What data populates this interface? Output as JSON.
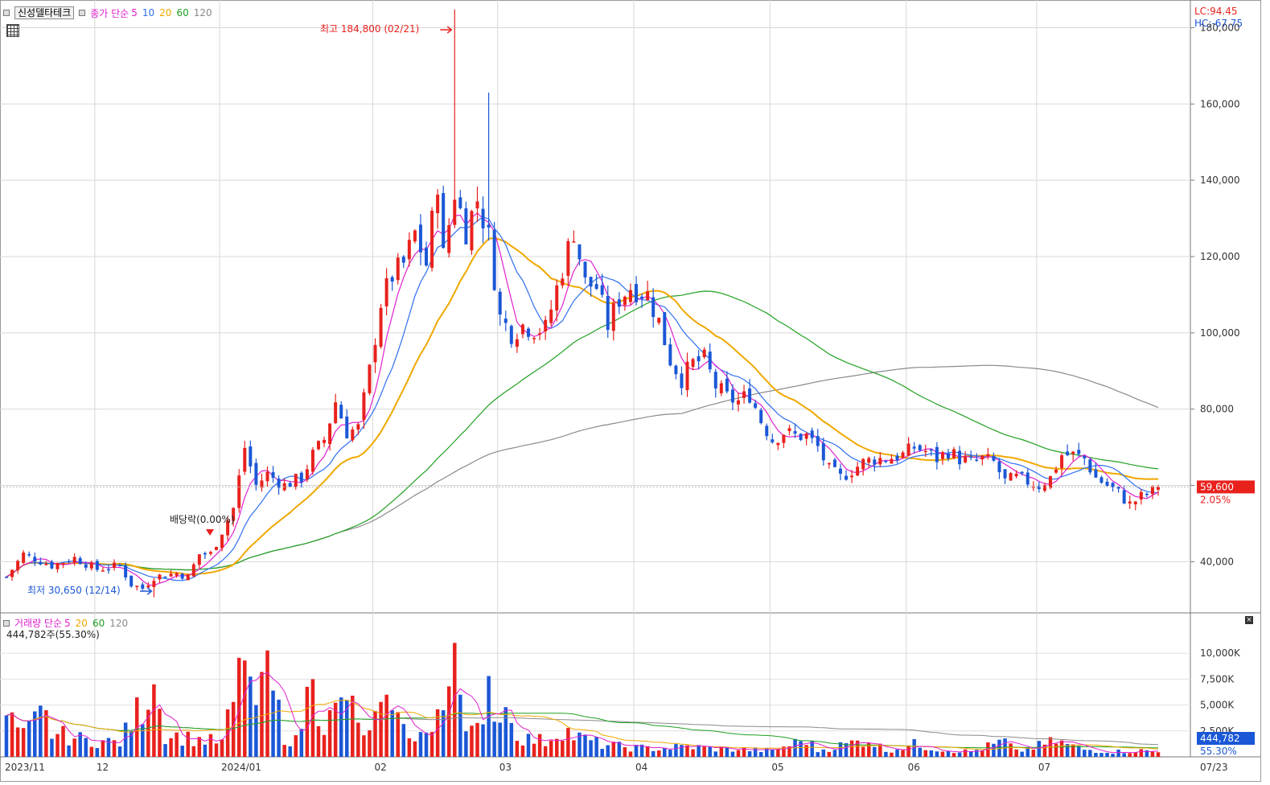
{
  "header": {
    "stock_name": "신성델타테크",
    "price_label": "종가 단순",
    "ma5": "5",
    "ma10": "10",
    "ma20": "20",
    "ma60": "60",
    "ma120": "120",
    "lc": "LC:94.45",
    "hc": "HC:-67.75"
  },
  "volume_header": {
    "label": "거래량 단순",
    "ma5": "5",
    "ma20": "20",
    "ma60": "60",
    "ma120": "120",
    "current": "444,782주(55.30%)"
  },
  "annotations": {
    "high": "최고 184,800 (02/21)",
    "low": "최저 30,650 (12/14)",
    "dividend": "배당락(0.00%)"
  },
  "current_price": {
    "value": "59,600",
    "change": "2.05%"
  },
  "current_volume": {
    "value": "444,782",
    "ratio": "55.30%"
  },
  "colors": {
    "up": "#e8211d",
    "down": "#1b57d6",
    "ma5": "#e020d0",
    "ma10": "#2f6ff0",
    "ma20": "#f0a800",
    "ma60": "#20a020",
    "ma120": "#8a8a8a"
  },
  "chart_data": [
    {
      "type": "candlestick",
      "title": "",
      "ylim": [
        27000,
        186000
      ],
      "y_ticks": [
        "40,000",
        "60,000",
        "80,000",
        "100,000",
        "120,000",
        "140,000",
        "160,000",
        "180,000"
      ],
      "x_ticks": [
        "2023/11",
        "12",
        "2024/01",
        "02",
        "03",
        "04",
        "05",
        "06",
        "07",
        "07/23"
      ],
      "close_anchors": [
        [
          0,
          36000
        ],
        [
          3,
          42000
        ],
        [
          8,
          39000
        ],
        [
          12,
          41000
        ],
        [
          16,
          38000
        ],
        [
          20,
          39000
        ],
        [
          22,
          34000
        ],
        [
          24,
          33000
        ],
        [
          26,
          36000
        ],
        [
          30,
          37000
        ],
        [
          32,
          36000
        ],
        [
          34,
          42000
        ],
        [
          36,
          42000
        ],
        [
          40,
          54000
        ],
        [
          42,
          70000
        ],
        [
          44,
          60000
        ],
        [
          46,
          63000
        ],
        [
          49,
          60000
        ],
        [
          52,
          62000
        ],
        [
          54,
          68000
        ],
        [
          56,
          72000
        ],
        [
          58,
          82000
        ],
        [
          60,
          74000
        ],
        [
          62,
          75000
        ],
        [
          64,
          90000
        ],
        [
          66,
          108000
        ],
        [
          68,
          115000
        ],
        [
          70,
          118000
        ],
        [
          72,
          126000
        ],
        [
          74,
          118000
        ],
        [
          76,
          140000
        ],
        [
          77,
          120000
        ],
        [
          79,
          137000
        ],
        [
          81,
          127000
        ],
        [
          83,
          135000
        ],
        [
          85,
          125000
        ],
        [
          87,
          104000
        ],
        [
          89,
          100000
        ],
        [
          91,
          102000
        ],
        [
          93,
          101000
        ],
        [
          95,
          101000
        ],
        [
          98,
          117000
        ],
        [
          100,
          127000
        ],
        [
          102,
          113000
        ],
        [
          104,
          112000
        ],
        [
          106,
          102000
        ],
        [
          108,
          109000
        ],
        [
          110,
          112000
        ],
        [
          113,
          110000
        ],
        [
          115,
          103000
        ],
        [
          117,
          93000
        ],
        [
          119,
          88000
        ],
        [
          121,
          92000
        ],
        [
          123,
          93000
        ],
        [
          125,
          86000
        ],
        [
          127,
          83000
        ],
        [
          129,
          82000
        ],
        [
          131,
          84000
        ],
        [
          133,
          77000
        ],
        [
          135,
          72000
        ],
        [
          137,
          74000
        ],
        [
          139,
          73000
        ],
        [
          141,
          73000
        ],
        [
          143,
          70000
        ],
        [
          145,
          64000
        ],
        [
          147,
          62000
        ],
        [
          149,
          64000
        ],
        [
          151,
          66000
        ],
        [
          153,
          67000
        ],
        [
          155,
          67000
        ],
        [
          158,
          68000
        ],
        [
          160,
          70000
        ],
        [
          162,
          69000
        ],
        [
          164,
          67000
        ],
        [
          166,
          69000
        ],
        [
          168,
          67000
        ],
        [
          170,
          66000
        ],
        [
          172,
          67000
        ],
        [
          174,
          66000
        ],
        [
          176,
          61000
        ],
        [
          178,
          62000
        ],
        [
          180,
          61000
        ],
        [
          182,
          60000
        ],
        [
          184,
          62000
        ],
        [
          186,
          68000
        ],
        [
          188,
          68000
        ],
        [
          190,
          67000
        ],
        [
          192,
          62000
        ],
        [
          194,
          60000
        ],
        [
          196,
          58000
        ],
        [
          198,
          55000
        ],
        [
          200,
          57000
        ],
        [
          202,
          58400
        ],
        [
          203,
          59600
        ]
      ],
      "special_candles": [
        {
          "index": 79,
          "high": 184800,
          "note": "최고"
        },
        {
          "index": 85,
          "high": 163000
        },
        {
          "index": 26,
          "low": 30650,
          "note": "최저"
        }
      ],
      "ma_periods": [
        5,
        10,
        20,
        60,
        120
      ],
      "months": [
        {
          "label": "2023/11",
          "index": 0
        },
        {
          "label": "12",
          "index": 16
        },
        {
          "label": "2024/01",
          "index": 38
        },
        {
          "label": "02",
          "index": 65
        },
        {
          "label": "03",
          "index": 87
        },
        {
          "label": "04",
          "index": 111
        },
        {
          "label": "05",
          "index": 135
        },
        {
          "label": "06",
          "index": 159
        },
        {
          "label": "07",
          "index": 182
        }
      ]
    },
    {
      "type": "bar",
      "title": "",
      "ylim": [
        0,
        12500000
      ],
      "y_ticks": [
        "2,500K",
        "5,000K",
        "7,500K",
        "10,000K"
      ],
      "volume_anchors": [
        [
          0,
          4000000
        ],
        [
          3,
          2000000
        ],
        [
          7,
          4500000
        ],
        [
          8,
          2300000
        ],
        [
          14,
          1600000
        ],
        [
          20,
          1400000
        ],
        [
          26,
          7000000
        ],
        [
          28,
          2200000
        ],
        [
          32,
          1800000
        ],
        [
          38,
          1400000
        ],
        [
          40,
          5300000
        ],
        [
          42,
          9300000
        ],
        [
          44,
          5000000
        ],
        [
          45,
          8200000
        ],
        [
          47,
          6400000
        ],
        [
          49,
          2000000
        ],
        [
          51,
          1500000
        ],
        [
          54,
          7500000
        ],
        [
          56,
          3000000
        ],
        [
          60,
          5500000
        ],
        [
          62,
          3300000
        ],
        [
          64,
          2000000
        ],
        [
          66,
          5300000
        ],
        [
          67,
          6000000
        ],
        [
          68,
          4500000
        ],
        [
          70,
          2600000
        ],
        [
          72,
          2200000
        ],
        [
          75,
          2300000
        ],
        [
          77,
          4500000
        ],
        [
          79,
          11000000
        ],
        [
          80,
          6000000
        ],
        [
          82,
          2800000
        ],
        [
          84,
          2300000
        ],
        [
          85,
          7800000
        ],
        [
          87,
          3300000
        ],
        [
          88,
          4800000
        ],
        [
          89,
          3000000
        ],
        [
          91,
          1800000
        ],
        [
          95,
          1500000
        ],
        [
          98,
          2800000
        ],
        [
          100,
          2000000
        ],
        [
          105,
          1200000
        ],
        [
          110,
          900000
        ],
        [
          115,
          800000
        ],
        [
          120,
          1000000
        ],
        [
          125,
          800000
        ],
        [
          130,
          700000
        ],
        [
          135,
          600000
        ],
        [
          141,
          1700000
        ],
        [
          143,
          600000
        ],
        [
          152,
          1700000
        ],
        [
          155,
          600000
        ],
        [
          160,
          1200000
        ],
        [
          165,
          700000
        ],
        [
          170,
          500000
        ],
        [
          176,
          1500000
        ],
        [
          178,
          500000
        ],
        [
          185,
          1500000
        ],
        [
          190,
          700000
        ],
        [
          195,
          500000
        ],
        [
          200,
          600000
        ],
        [
          203,
          444782
        ]
      ]
    }
  ]
}
